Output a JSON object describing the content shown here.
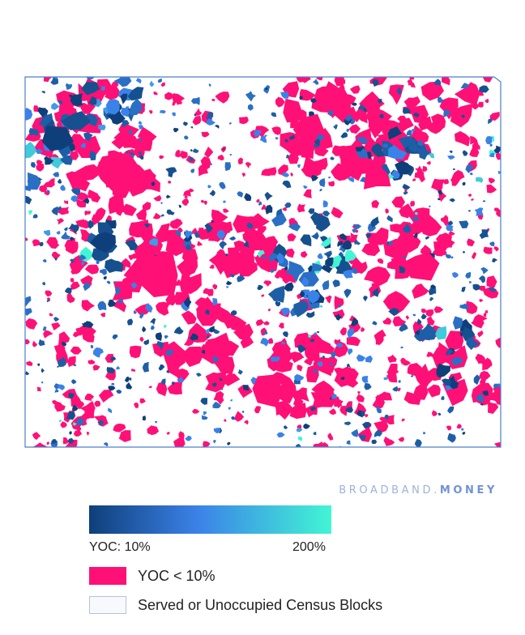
{
  "map": {
    "state_outline_color": "#4a7fc9",
    "colors": {
      "yoc_low": "#ff1076",
      "gradient_start": "#0f3f7a",
      "gradient_mid": "#3b82e8",
      "gradient_end": "#42f5d4",
      "served": "#ffffff"
    }
  },
  "brand": {
    "name_part1": "BROADBAND.",
    "name_part2": "MONEY"
  },
  "legend": {
    "gradient": {
      "min_label": "YOC: 10%",
      "max_label": "200%"
    },
    "items": [
      {
        "label": "YOC < 10%",
        "color": "#ff1076"
      },
      {
        "label": "Served or Unoccupied Census Blocks",
        "color": "#f8f9fc"
      }
    ]
  }
}
